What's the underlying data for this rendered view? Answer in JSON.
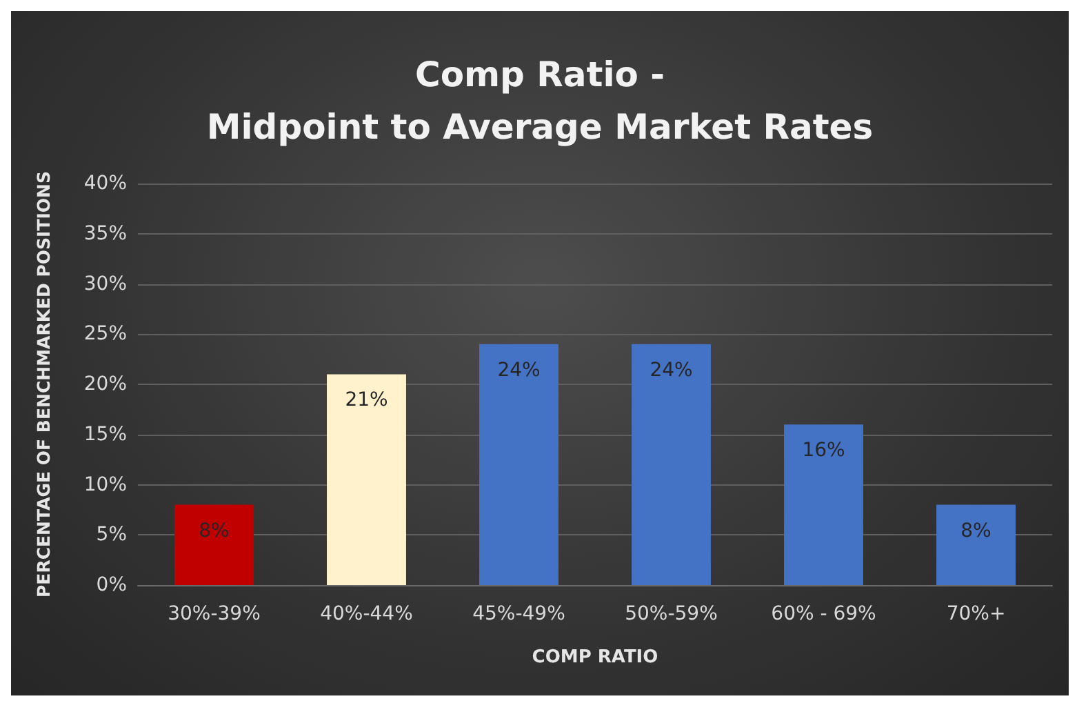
{
  "chart_data": {
    "type": "bar",
    "title": "Comp Ratio -\nMidpoint to Average Market Rates",
    "xlabel": "COMP RATIO",
    "ylabel": "PERCENTAGE OF BENCHMARKED POSITIONS",
    "categories": [
      "30%-39%",
      "40%-44%",
      "45%-49%",
      "50%-59%",
      "60% - 69%",
      "70%+"
    ],
    "values": [
      8,
      21,
      24,
      24,
      16,
      8
    ],
    "colors": [
      "#c00000",
      "#fff2cc",
      "#4472c4",
      "#4472c4",
      "#4472c4",
      "#4472c4"
    ],
    "value_labels": [
      "8%",
      "21%",
      "24%",
      "24%",
      "16%",
      "8%"
    ],
    "ylim": [
      0,
      40
    ],
    "yticks": [
      {
        "value": 0,
        "label": "0%"
      },
      {
        "value": 5,
        "label": "5%"
      },
      {
        "value": 10,
        "label": "10%"
      },
      {
        "value": 15,
        "label": "15%"
      },
      {
        "value": 20,
        "label": "20%"
      },
      {
        "value": 25,
        "label": "25%"
      },
      {
        "value": 30,
        "label": "30%"
      },
      {
        "value": 35,
        "label": "35%"
      },
      {
        "value": 40,
        "label": "40%"
      }
    ],
    "grid": "y"
  }
}
